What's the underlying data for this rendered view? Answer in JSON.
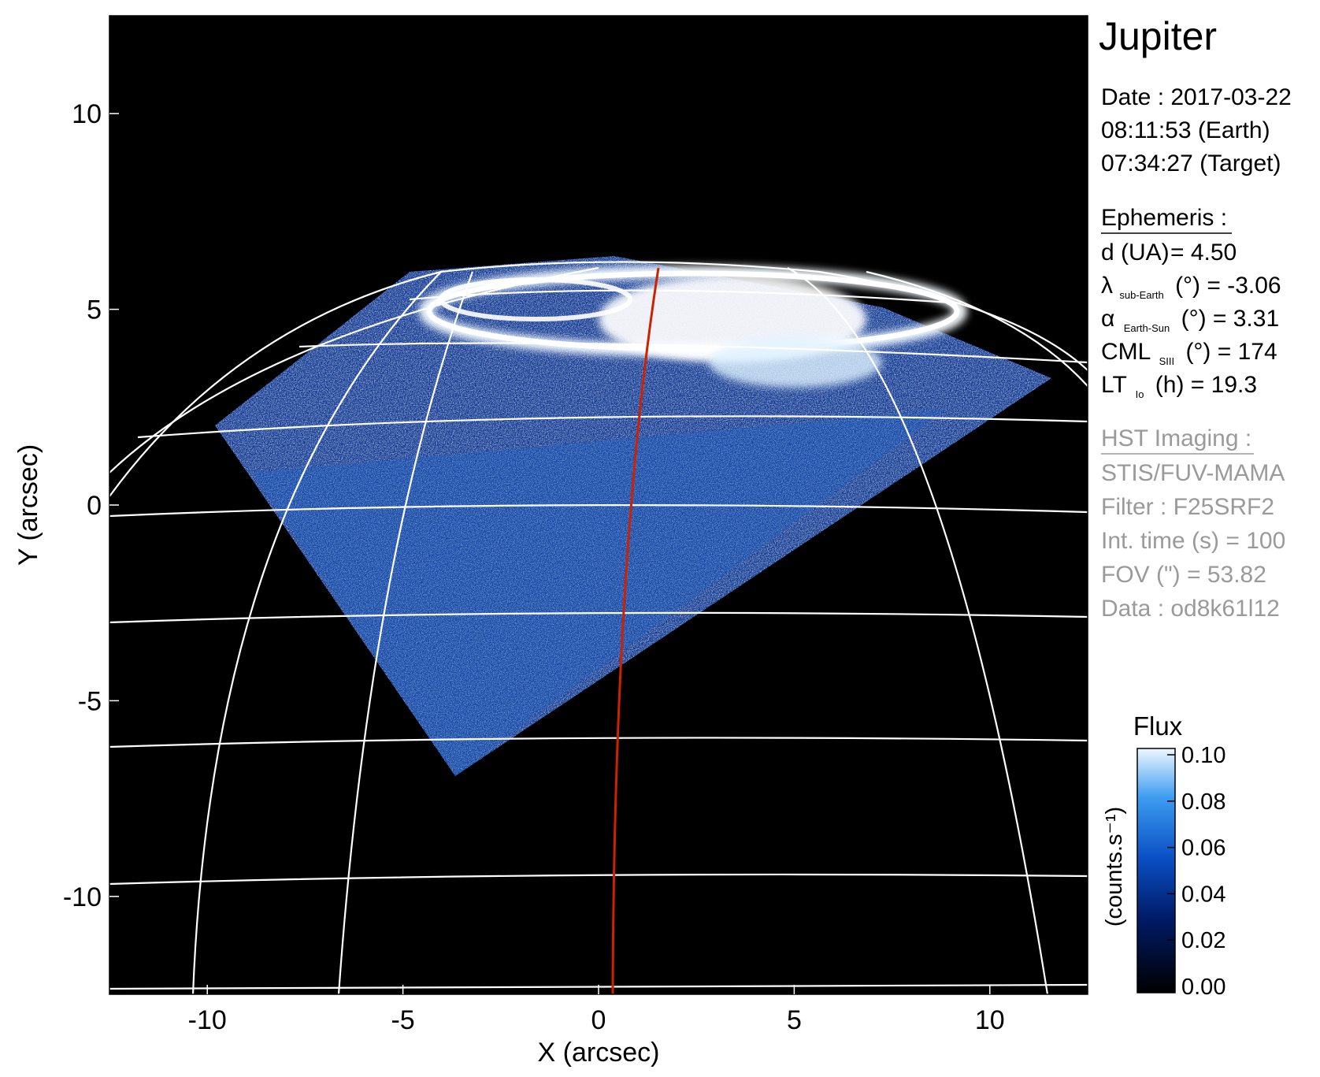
{
  "chart_data": {
    "type": "image",
    "title": "Jupiter",
    "xlabel": "X (arcsec)",
    "ylabel": "Y (arcsec)",
    "xlim": [
      -12.5,
      12.5
    ],
    "ylim": [
      -12.5,
      12.5
    ],
    "xticks": [
      -10,
      -5,
      0,
      5,
      10
    ],
    "yticks": [
      -10,
      -5,
      0,
      5,
      10
    ],
    "xtick_labels": [
      "-10",
      "-5",
      "0",
      "5",
      "10"
    ],
    "ytick_labels": [
      "-10",
      "-5",
      "0",
      "5",
      "10"
    ],
    "background_color": "#000000",
    "grid_color": "#ffffff",
    "meridian_color": "#cc2200",
    "colormap": [
      "#000000",
      "#001a66",
      "#0a4fc4",
      "#3d9cf0",
      "#e8f6ff"
    ],
    "colorbar": {
      "title": "Flux",
      "label": "(counts.s⁻¹)",
      "range": [
        0.0,
        0.1
      ],
      "ticks": [
        "0.10",
        "0.08",
        "0.06",
        "0.04",
        "0.02",
        "0.00"
      ]
    }
  },
  "info": {
    "date_line": "Date : 2017-03-22",
    "earth_time": "08:11:53 (Earth)",
    "target_time": "07:34:27 (Target)",
    "ephemeris_heading": "Ephemeris :",
    "d_label": "d (UA)",
    "d_value": "= 4.50",
    "lambda_symbol": "λ",
    "lambda_sub": "sub-Earth",
    "lambda_value": "(°) = -3.06",
    "alpha_symbol": "α",
    "alpha_sub": "Earth-Sun",
    "alpha_value": "(°) = 3.31",
    "cml_label": "CML",
    "cml_sub": "SIII",
    "cml_value": "(°) = 174",
    "lt_label": "LT",
    "lt_sub": "Io",
    "lt_value": "(h) = 19.3",
    "hst_heading": "HST Imaging :",
    "instrument": "STIS/FUV-MAMA",
    "filter": "Filter : F25SRF2",
    "int_time": "Int. time (s) = 100",
    "fov": "FOV (\") = 53.82",
    "data_id": "Data : od8k61l12"
  }
}
